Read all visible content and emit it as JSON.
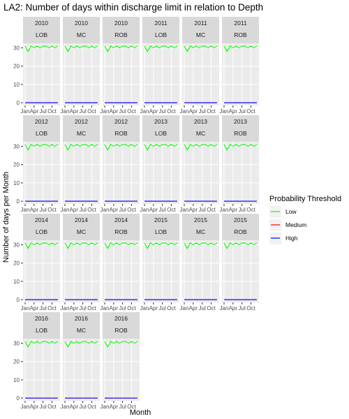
{
  "chart_data": {
    "type": "line",
    "title": "LA2: Number of days within discharge limit in relation to Depth",
    "xlabel": "Month",
    "ylabel": "Number of days per Month",
    "x_tick_labels": [
      "Jan",
      "Apr",
      "Jul",
      "Oct"
    ],
    "x": [
      1,
      2,
      3,
      4,
      5,
      6,
      7,
      8,
      9,
      10,
      11,
      12
    ],
    "xlim": [
      1,
      12
    ],
    "ylim": [
      0,
      31
    ],
    "y_ticks": [
      0,
      10,
      20,
      30
    ],
    "grid": true,
    "legend": {
      "title": "Probability Threshold",
      "position": "right",
      "entries": [
        {
          "name": "Low",
          "color": "#00ff00"
        },
        {
          "name": "Medium",
          "color": "#ff0000"
        },
        {
          "name": "High",
          "color": "#0000ff"
        }
      ]
    },
    "series": [
      {
        "name": "Low",
        "color": "#00ff00",
        "values": [
          31,
          28,
          31,
          30,
          31,
          30,
          31,
          31,
          30,
          31,
          30,
          31
        ]
      },
      {
        "name": "Medium",
        "color": "#ff0000",
        "values": [
          0,
          0,
          0,
          0,
          0,
          0,
          0,
          0,
          0,
          0,
          0,
          0
        ]
      },
      {
        "name": "High",
        "color": "#0000ff",
        "values": [
          0,
          0,
          0,
          0,
          0,
          0,
          0,
          0,
          0,
          0,
          0,
          0
        ]
      }
    ],
    "facets": [
      {
        "year": "2010",
        "location": "LOB"
      },
      {
        "year": "2010",
        "location": "MC"
      },
      {
        "year": "2010",
        "location": "ROB"
      },
      {
        "year": "2011",
        "location": "LOB"
      },
      {
        "year": "2011",
        "location": "MC"
      },
      {
        "year": "2011",
        "location": "ROB"
      },
      {
        "year": "2012",
        "location": "LOB"
      },
      {
        "year": "2012",
        "location": "MC"
      },
      {
        "year": "2012",
        "location": "ROB"
      },
      {
        "year": "2013",
        "location": "LOB"
      },
      {
        "year": "2013",
        "location": "MC"
      },
      {
        "year": "2013",
        "location": "ROB"
      },
      {
        "year": "2014",
        "location": "LOB"
      },
      {
        "year": "2014",
        "location": "MC"
      },
      {
        "year": "2014",
        "location": "ROB"
      },
      {
        "year": "2015",
        "location": "LOB"
      },
      {
        "year": "2015",
        "location": "MC"
      },
      {
        "year": "2015",
        "location": "ROB"
      },
      {
        "year": "2016",
        "location": "LOB"
      },
      {
        "year": "2016",
        "location": "MC"
      },
      {
        "year": "2016",
        "location": "ROB"
      }
    ]
  }
}
